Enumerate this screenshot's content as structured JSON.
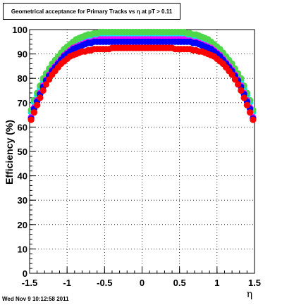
{
  "title": "Geometrical acceptance for Primary Tracks vs    η at pT > 0.11",
  "datestamp": "Wed Nov  9 10:12:58 2011",
  "chart_data": {
    "type": "scatter",
    "xlabel": "η",
    "ylabel": "Efficiency (%)",
    "xlim": [
      -1.5,
      1.5
    ],
    "ylim": [
      0,
      100
    ],
    "xticks": [
      "-1.5",
      "-1",
      "-0.5",
      "0",
      "0.5",
      "1",
      "1.5"
    ],
    "yticks": [
      "0",
      "10",
      "20",
      "30",
      "40",
      "50",
      "60",
      "70",
      "80",
      "90",
      "100"
    ],
    "grid": true,
    "x": [
      -1.48,
      -1.44,
      -1.4,
      -1.36,
      -1.32,
      -1.28,
      -1.24,
      -1.2,
      -1.16,
      -1.12,
      -1.08,
      -1.04,
      -1.0,
      -0.96,
      -0.92,
      -0.88,
      -0.84,
      -0.8,
      -0.76,
      -0.72,
      -0.68,
      -0.64,
      -0.6,
      -0.56,
      -0.52,
      -0.48,
      -0.44,
      -0.4,
      -0.36,
      -0.32,
      -0.28,
      -0.24,
      -0.2,
      -0.16,
      -0.12,
      -0.08,
      -0.04,
      0.0,
      0.04,
      0.08,
      0.12,
      0.16,
      0.2,
      0.24,
      0.28,
      0.32,
      0.36,
      0.4,
      0.44,
      0.48,
      0.52,
      0.56,
      0.6,
      0.64,
      0.68,
      0.72,
      0.76,
      0.8,
      0.84,
      0.88,
      0.92,
      0.96,
      1.0,
      1.04,
      1.08,
      1.12,
      1.16,
      1.2,
      1.24,
      1.28,
      1.32,
      1.36,
      1.4,
      1.44,
      1.48
    ],
    "series": [
      {
        "color": "#00e5ff",
        "values": [
          66,
          70,
          73,
          76,
          79,
          81,
          83,
          85,
          86.5,
          88,
          89.5,
          91,
          92,
          93,
          94,
          95,
          95.5,
          96,
          96.5,
          97,
          97,
          97.5,
          97.5,
          98,
          98,
          98,
          98,
          98,
          98,
          98,
          98,
          98,
          98,
          98,
          98,
          98,
          98,
          98,
          98,
          98,
          98,
          98,
          98,
          98,
          98,
          98,
          98,
          98,
          98,
          98,
          98,
          98,
          97.5,
          97.5,
          97,
          97,
          96.5,
          96,
          95.5,
          95,
          94,
          93,
          92,
          91,
          89.5,
          88,
          86.5,
          85,
          83,
          81,
          79,
          76,
          73,
          70,
          66
        ]
      },
      {
        "color": "#4fd64a",
        "values": [
          67,
          71,
          74,
          77,
          80,
          82,
          84,
          86,
          87.5,
          89,
          90.5,
          92,
          93,
          94,
          95,
          96,
          96.5,
          97,
          97.5,
          98,
          98,
          98.5,
          98.5,
          99,
          99,
          99,
          99,
          99,
          99,
          99,
          99,
          99,
          99,
          99,
          99,
          99,
          99,
          99,
          99,
          99,
          99,
          99,
          99,
          99,
          99,
          99,
          99,
          99,
          99,
          99,
          99,
          99,
          98.5,
          98.5,
          98,
          98,
          97.5,
          97,
          96.5,
          96,
          95,
          94,
          93,
          92,
          90.5,
          89,
          87.5,
          86,
          84,
          82,
          80,
          77,
          74,
          71,
          67
        ]
      },
      {
        "color": "#ff00ff",
        "values": [
          64,
          68,
          71,
          74,
          77,
          79.5,
          81.5,
          83.5,
          85,
          86.5,
          88,
          89.5,
          90.5,
          91.5,
          92.5,
          93,
          93.5,
          94,
          94.5,
          95,
          95,
          95.5,
          95.5,
          96,
          96,
          96,
          96,
          96,
          96,
          96,
          96,
          96,
          96,
          96,
          96,
          96,
          96,
          96,
          96,
          96,
          96,
          96,
          96,
          96,
          96,
          96,
          96,
          96,
          96,
          96,
          96,
          96,
          95.5,
          95.5,
          95,
          95,
          94.5,
          94,
          93.5,
          93,
          92.5,
          91.5,
          90.5,
          89.5,
          88,
          86.5,
          85,
          83.5,
          81.5,
          79.5,
          77,
          74,
          71,
          68,
          64
        ]
      },
      {
        "color": "#0000ff",
        "values": [
          63.5,
          67.5,
          70.5,
          73.5,
          76.5,
          79,
          81,
          83,
          84.5,
          86,
          87.5,
          89,
          90,
          91,
          92,
          92.5,
          93,
          93.5,
          94,
          94.5,
          94.5,
          95,
          95,
          95,
          95,
          95,
          95,
          95,
          95,
          95,
          95,
          95,
          95,
          95,
          95,
          95,
          95,
          95,
          95,
          95,
          95,
          95,
          95,
          95,
          95,
          95,
          95,
          95,
          95,
          95,
          95,
          95,
          95,
          95,
          94.5,
          94.5,
          94,
          93.5,
          93,
          92.5,
          92,
          91,
          90,
          89,
          87.5,
          86,
          84.5,
          83,
          81,
          79,
          76.5,
          73.5,
          70.5,
          67.5,
          63.5
        ]
      },
      {
        "color": "#ff0000",
        "values": [
          63,
          66,
          69,
          72,
          75,
          77.5,
          79.5,
          81.5,
          83,
          84.5,
          86,
          87,
          88,
          89,
          89.5,
          90,
          90.5,
          91,
          91,
          91.5,
          91.5,
          92,
          92,
          92,
          92,
          92,
          92,
          92.5,
          92.5,
          92.5,
          92.5,
          92.5,
          92.5,
          92.5,
          92.5,
          92.5,
          92.5,
          92.5,
          92.5,
          92.5,
          92.5,
          92.5,
          92.5,
          92.5,
          92.5,
          92.5,
          92.5,
          92.5,
          92,
          92,
          92,
          92,
          92,
          92,
          91.5,
          91.5,
          91,
          91,
          90.5,
          90,
          89.5,
          89,
          88,
          87,
          86,
          84.5,
          83,
          81.5,
          79.5,
          77.5,
          75,
          72,
          69,
          66,
          63
        ]
      }
    ]
  }
}
